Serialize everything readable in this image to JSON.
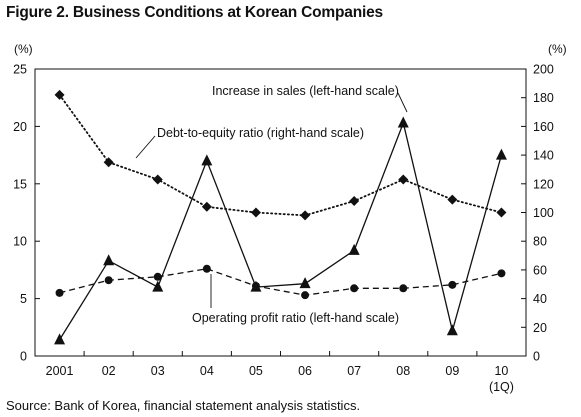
{
  "figure": {
    "title": "Figure 2. Business Conditions at Korean Companies",
    "source": "Source: Bank of Korea, financial statement analysis statistics."
  },
  "chart_data": {
    "type": "line",
    "title": "Figure 2. Business Conditions at Korean Companies",
    "categories": [
      "2001",
      "02",
      "03",
      "04",
      "05",
      "06",
      "07",
      "08",
      "09",
      "10"
    ],
    "category_sublabels": [
      "",
      "",
      "",
      "",
      "",
      "",
      "",
      "",
      "",
      "(1Q)"
    ],
    "y_left": {
      "unit": "(%)",
      "min": 0,
      "max": 25,
      "ticks": [
        0,
        5,
        10,
        15,
        20,
        25
      ]
    },
    "y_right": {
      "unit": "(%)",
      "min": 0,
      "max": 200,
      "ticks": [
        0,
        20,
        40,
        60,
        80,
        100,
        120,
        140,
        160,
        180,
        200
      ]
    },
    "grid": false,
    "series": [
      {
        "name": "Increase in sales (left-hand scale)",
        "axis": "left",
        "line": "solid",
        "marker": "triangle",
        "values": [
          1.4,
          8.3,
          6.0,
          17.0,
          6.0,
          6.3,
          9.2,
          20.3,
          2.2,
          17.5
        ]
      },
      {
        "name": "Debt-to-equity ratio (right-hand scale)",
        "axis": "right",
        "line": "dotted",
        "marker": "diamond",
        "values": [
          182,
          135,
          123,
          104,
          100,
          98,
          108,
          123,
          109,
          100
        ]
      },
      {
        "name": "Operating profit ratio (left-hand scale)",
        "axis": "left",
        "line": "dashed",
        "marker": "circle",
        "values": [
          5.5,
          6.6,
          6.9,
          7.6,
          6.1,
          5.3,
          5.9,
          5.9,
          6.2,
          7.2
        ]
      }
    ],
    "annotations": [
      "Increase in sales (left-hand scale)",
      "Debt-to-equity ratio (right-hand scale)",
      "Operating profit ratio (left-hand scale)"
    ]
  }
}
